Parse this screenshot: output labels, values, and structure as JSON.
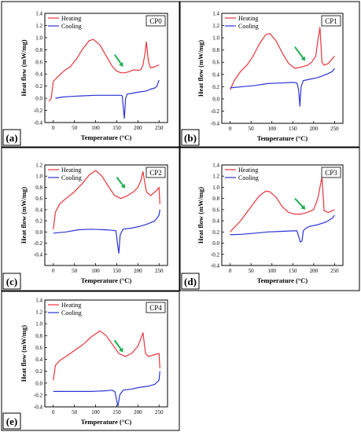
{
  "figure": {
    "colors": {
      "heating": "#e8343c",
      "cooling": "#2a33d6",
      "arrow": "#1fb050",
      "frame": "#000000"
    }
  },
  "chart_data": [
    {
      "type": "line",
      "panel_label": "(a)",
      "sample": "CP0",
      "xlabel": "Temperature (°C)",
      "ylabel": "Heat flow (mW/mg)",
      "xlim": [
        -20,
        270
      ],
      "ylim": [
        -0.4,
        1.4
      ],
      "xticks": [
        0,
        50,
        100,
        150,
        200,
        250
      ],
      "yticks": [
        -0.4,
        -0.2,
        0.0,
        0.2,
        0.4,
        0.6,
        0.8,
        1.0,
        1.2,
        1.4
      ],
      "legend": "top-left",
      "series": [
        {
          "name": "Heating",
          "x": [
            -10,
            -5,
            0,
            10,
            25,
            40,
            55,
            70,
            85,
            95,
            110,
            125,
            140,
            150,
            160,
            170,
            180,
            190,
            200,
            207,
            212,
            217,
            220,
            225,
            230,
            240,
            250
          ],
          "y": [
            -0.05,
            0.0,
            0.28,
            0.35,
            0.45,
            0.52,
            0.65,
            0.82,
            0.95,
            0.97,
            0.88,
            0.7,
            0.52,
            0.45,
            0.42,
            0.42,
            0.44,
            0.47,
            0.46,
            0.47,
            0.55,
            0.75,
            0.93,
            0.6,
            0.5,
            0.52,
            0.55
          ]
        },
        {
          "name": "Cooling",
          "x": [
            250,
            245,
            240,
            230,
            220,
            200,
            185,
            175,
            171,
            168,
            166,
            163,
            160,
            150,
            130,
            100,
            70,
            40,
            20,
            5
          ],
          "y": [
            0.3,
            0.2,
            0.17,
            0.15,
            0.12,
            0.1,
            0.08,
            0.07,
            0.0,
            -0.33,
            -0.2,
            0.04,
            0.05,
            0.05,
            0.05,
            0.05,
            0.04,
            0.03,
            0.02,
            0.0
          ]
        }
      ],
      "annotations": [
        {
          "type": "arrow",
          "from": [
            145,
            0.72
          ],
          "to": [
            165,
            0.52
          ]
        }
      ]
    },
    {
      "type": "line",
      "panel_label": "(b)",
      "sample": "CP1",
      "xlabel": "Temperature (°C)",
      "ylabel": "Heat flow (mW/mg)",
      "xlim": [
        -20,
        270
      ],
      "ylim": [
        -0.4,
        1.4
      ],
      "xticks": [
        0,
        50,
        100,
        150,
        200,
        250
      ],
      "yticks": [
        -0.4,
        -0.2,
        0.0,
        0.2,
        0.4,
        0.6,
        0.8,
        1.0,
        1.2,
        1.4
      ],
      "legend": "top-left",
      "series": [
        {
          "name": "Heating",
          "x": [
            0,
            10,
            25,
            40,
            55,
            70,
            85,
            95,
            110,
            125,
            140,
            155,
            170,
            185,
            195,
            205,
            210,
            215,
            220,
            225,
            235,
            250
          ],
          "y": [
            0.15,
            0.3,
            0.45,
            0.55,
            0.7,
            0.9,
            1.05,
            1.07,
            0.95,
            0.75,
            0.58,
            0.5,
            0.52,
            0.55,
            0.6,
            0.7,
            0.95,
            1.17,
            0.6,
            0.55,
            0.58,
            0.7
          ]
        },
        {
          "name": "Cooling",
          "x": [
            250,
            245,
            230,
            210,
            190,
            175,
            170,
            167,
            164,
            160,
            150,
            120,
            90,
            60,
            30,
            0
          ],
          "y": [
            0.5,
            0.45,
            0.4,
            0.35,
            0.32,
            0.3,
            0.2,
            -0.12,
            0.15,
            0.26,
            0.27,
            0.26,
            0.25,
            0.22,
            0.2,
            0.18
          ]
        }
      ],
      "annotations": [
        {
          "type": "arrow",
          "from": [
            155,
            0.85
          ],
          "to": [
            180,
            0.62
          ]
        }
      ]
    },
    {
      "type": "line",
      "panel_label": "(c)",
      "sample": "CP2",
      "xlabel": "Temperature (°C)",
      "ylabel": "Heat flow (mW/mg)",
      "xlim": [
        -20,
        270
      ],
      "ylim": [
        -0.6,
        1.2
      ],
      "xticks": [
        0,
        50,
        100,
        150,
        200,
        250
      ],
      "yticks": [
        -0.4,
        -0.2,
        0.0,
        0.2,
        0.4,
        0.6,
        0.8,
        1.0,
        1.2
      ],
      "legend": "top-left",
      "series": [
        {
          "name": "Heating",
          "x": [
            0,
            5,
            15,
            30,
            50,
            70,
            85,
            100,
            115,
            130,
            145,
            160,
            175,
            190,
            200,
            207,
            212,
            220,
            230,
            245,
            250,
            252
          ],
          "y": [
            0.05,
            0.35,
            0.5,
            0.6,
            0.72,
            0.88,
            1.02,
            1.1,
            1.0,
            0.82,
            0.65,
            0.6,
            0.65,
            0.72,
            0.8,
            0.92,
            1.08,
            0.72,
            0.65,
            0.75,
            0.8,
            0.5
          ]
        },
        {
          "name": "Cooling",
          "x": [
            252,
            250,
            240,
            225,
            205,
            185,
            165,
            158,
            155,
            152,
            148,
            140,
            120,
            90,
            60,
            30,
            0
          ],
          "y": [
            0.4,
            0.3,
            0.2,
            0.15,
            0.1,
            0.07,
            0.05,
            -0.05,
            -0.38,
            -0.22,
            0.02,
            0.03,
            0.04,
            0.05,
            0.04,
            0.0,
            -0.02
          ]
        }
      ],
      "annotations": [
        {
          "type": "arrow",
          "from": [
            150,
            0.98
          ],
          "to": [
            170,
            0.78
          ]
        }
      ]
    },
    {
      "type": "line",
      "panel_label": "(d)",
      "sample": "CP3",
      "xlabel": "Temperature (°C)",
      "ylabel": "Heat flow (mW/mg)",
      "xlim": [
        -20,
        270
      ],
      "ylim": [
        -0.4,
        1.4
      ],
      "xticks": [
        0,
        50,
        100,
        150,
        200,
        250
      ],
      "yticks": [
        -0.4,
        -0.2,
        0.0,
        0.2,
        0.4,
        0.6,
        0.8,
        1.0,
        1.2,
        1.4
      ],
      "legend": "top-left",
      "series": [
        {
          "name": "Heating",
          "x": [
            0,
            10,
            25,
            40,
            55,
            70,
            85,
            95,
            110,
            125,
            140,
            155,
            170,
            185,
            200,
            210,
            215,
            220,
            225,
            235,
            250
          ],
          "y": [
            0.2,
            0.28,
            0.4,
            0.55,
            0.7,
            0.85,
            0.93,
            0.92,
            0.82,
            0.65,
            0.55,
            0.52,
            0.52,
            0.55,
            0.6,
            0.8,
            1.0,
            1.18,
            0.58,
            0.55,
            0.6
          ]
        },
        {
          "name": "Cooling",
          "x": [
            250,
            245,
            230,
            210,
            190,
            180,
            175,
            172,
            168,
            165,
            160,
            150,
            120,
            90,
            60,
            30,
            0
          ],
          "y": [
            0.5,
            0.45,
            0.38,
            0.33,
            0.3,
            0.26,
            0.22,
            0.04,
            0.02,
            0.1,
            0.22,
            0.22,
            0.21,
            0.2,
            0.18,
            0.16,
            0.15
          ]
        }
      ],
      "annotations": [
        {
          "type": "arrow",
          "from": [
            155,
            0.8
          ],
          "to": [
            180,
            0.6
          ]
        }
      ]
    },
    {
      "type": "line",
      "panel_label": "(e)",
      "sample": "CP4",
      "xlabel": "Temperature (°C)",
      "ylabel": "Heat flow (mW/mg)",
      "xlim": [
        -20,
        270
      ],
      "ylim": [
        -0.4,
        1.4
      ],
      "xticks": [
        0,
        50,
        100,
        150,
        200,
        250
      ],
      "yticks": [
        -0.4,
        -0.2,
        0.0,
        0.2,
        0.4,
        0.6,
        0.8,
        1.0,
        1.2,
        1.4
      ],
      "legend": "top-left",
      "series": [
        {
          "name": "Heating",
          "x": [
            0,
            5,
            15,
            30,
            50,
            70,
            90,
            110,
            125,
            140,
            155,
            170,
            185,
            200,
            207,
            212,
            218,
            225,
            240,
            250,
            252
          ],
          "y": [
            0.05,
            0.3,
            0.38,
            0.45,
            0.55,
            0.65,
            0.78,
            0.88,
            0.8,
            0.65,
            0.5,
            0.45,
            0.5,
            0.62,
            0.75,
            0.85,
            0.5,
            0.45,
            0.48,
            0.5,
            0.25
          ]
        },
        {
          "name": "Cooling",
          "x": [
            252,
            250,
            240,
            225,
            205,
            185,
            165,
            157,
            153,
            150,
            146,
            140,
            120,
            90,
            60,
            30,
            0
          ],
          "y": [
            0.2,
            0.05,
            -0.02,
            -0.05,
            -0.07,
            -0.1,
            -0.12,
            -0.2,
            -0.38,
            -0.3,
            -0.15,
            -0.12,
            -0.13,
            -0.14,
            -0.14,
            -0.14,
            -0.14
          ]
        }
      ],
      "annotations": [
        {
          "type": "arrow",
          "from": [
            145,
            0.72
          ],
          "to": [
            165,
            0.52
          ]
        }
      ]
    }
  ]
}
